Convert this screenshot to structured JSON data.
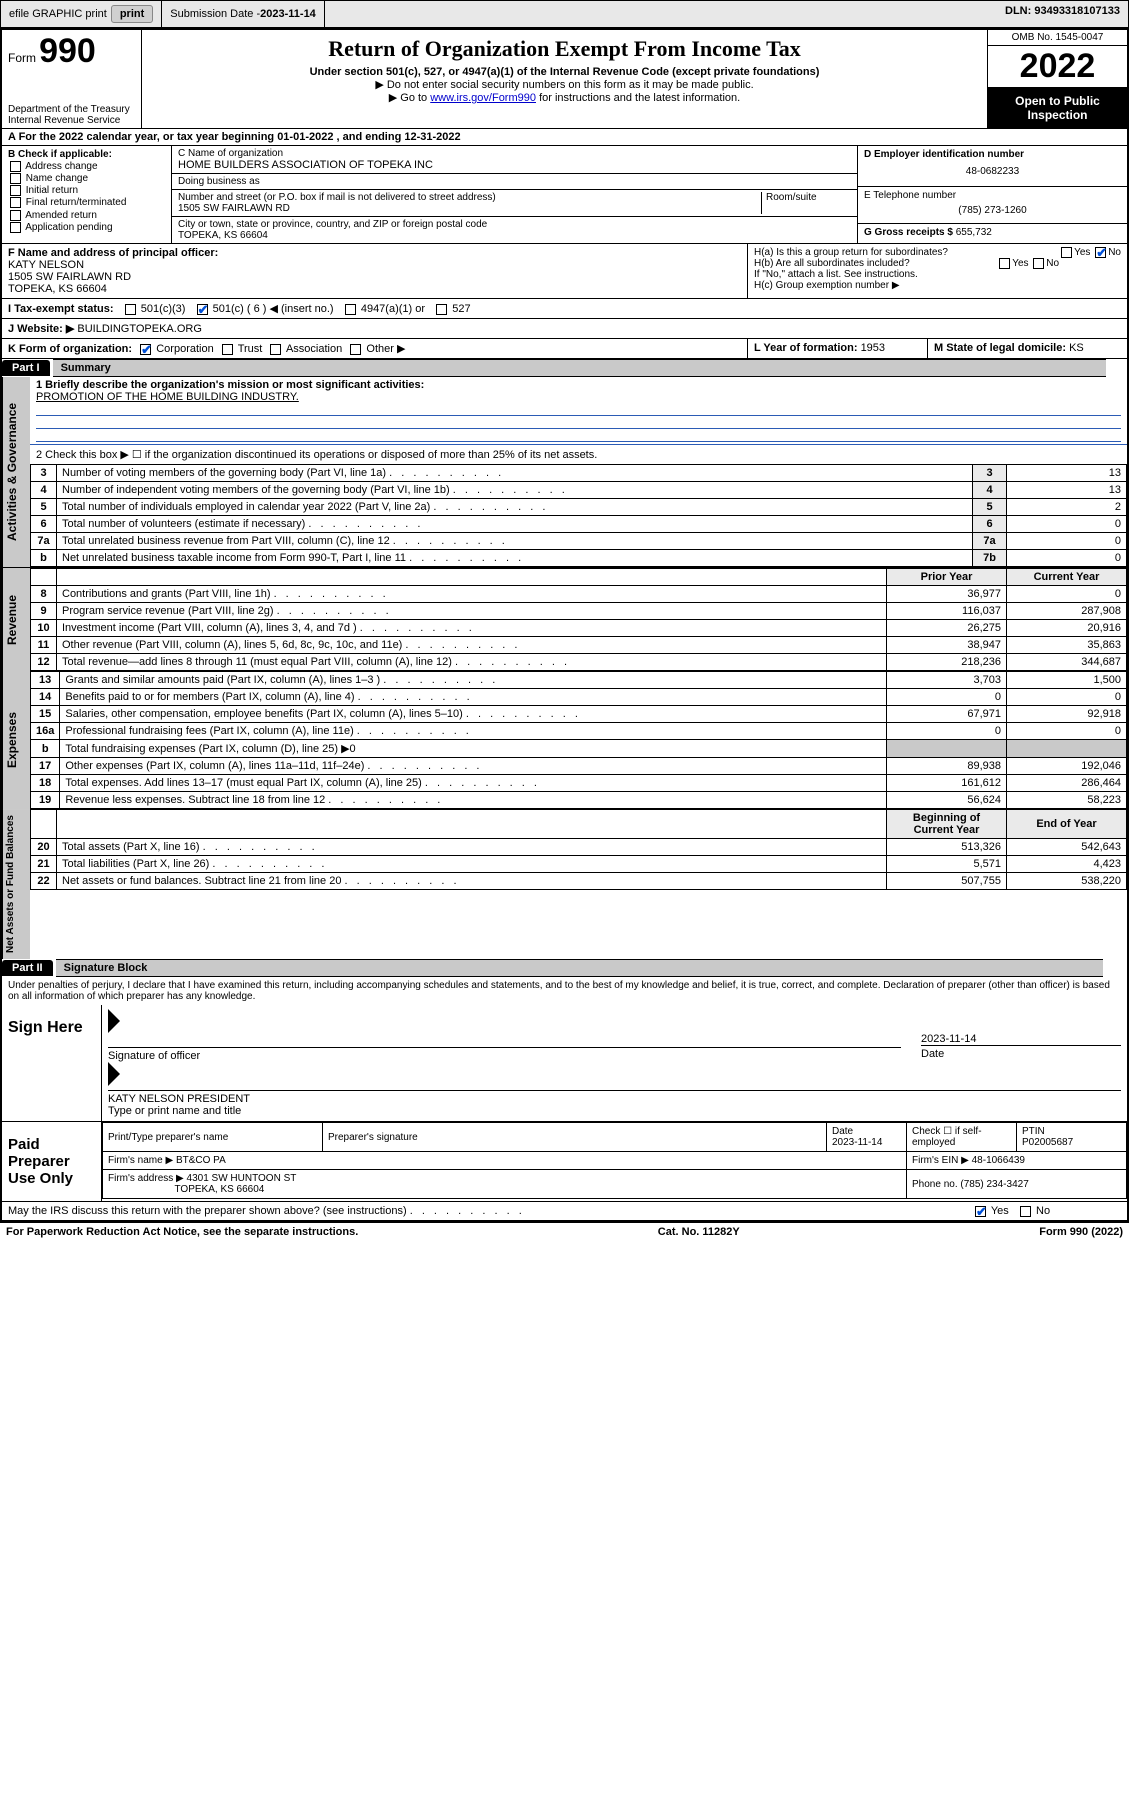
{
  "topbar": {
    "efile": "efile GRAPHIC print",
    "submission_label": "Submission Date - ",
    "submission_date": "2023-11-14",
    "dln_label": "DLN: ",
    "dln": "93493318107133"
  },
  "header": {
    "form_word": "Form",
    "form_num": "990",
    "title": "Return of Organization Exempt From Income Tax",
    "subtitle": "Under section 501(c), 527, or 4947(a)(1) of the Internal Revenue Code (except private foundations)",
    "note1": "▶ Do not enter social security numbers on this form as it may be made public.",
    "note2_pre": "▶ Go to ",
    "note2_link": "www.irs.gov/Form990",
    "note2_post": " for instructions and the latest information.",
    "omb": "OMB No. 1545-0047",
    "year": "2022",
    "open": "Open to Public Inspection",
    "dept": "Department of the Treasury",
    "irs": "Internal Revenue Service"
  },
  "lineA": "A For the 2022 calendar year, or tax year beginning 01-01-2022   , and ending 12-31-2022",
  "boxB": {
    "title": "B Check if applicable:",
    "items": [
      "Address change",
      "Name change",
      "Initial return",
      "Final return/terminated",
      "Amended return",
      "Application pending"
    ]
  },
  "boxC": {
    "label": "C Name of organization",
    "name": "HOME BUILDERS ASSOCIATION OF TOPEKA INC",
    "dba_label": "Doing business as",
    "dba": "",
    "street_label": "Number and street (or P.O. box if mail is not delivered to street address)",
    "room_label": "Room/suite",
    "street": "1505 SW FAIRLAWN RD",
    "city_label": "City or town, state or province, country, and ZIP or foreign postal code",
    "city": "TOPEKA, KS  66604"
  },
  "boxD": {
    "label": "D Employer identification number",
    "ein": "48-0682233"
  },
  "boxE": {
    "label": "E Telephone number",
    "phone": "(785) 273-1260"
  },
  "boxG": {
    "label": "G Gross receipts $ ",
    "val": "655,732"
  },
  "boxF": {
    "label": "F  Name and address of principal officer:",
    "name": "KATY NELSON",
    "street": "1505 SW FAIRLAWN RD",
    "city": "TOPEKA, KS  66604"
  },
  "boxH": {
    "a": "H(a)  Is this a group return for subordinates?",
    "b": "H(b)  Are all subordinates included?",
    "bnote": "If \"No,\" attach a list. See instructions.",
    "c": "H(c)  Group exemption number ▶",
    "yes": "Yes",
    "no": "No"
  },
  "lineI": {
    "label": "I   Tax-exempt status:",
    "o1": "501(c)(3)",
    "o2": "501(c) ( 6 ) ◀ (insert no.)",
    "o3": "4947(a)(1) or",
    "o4": "527"
  },
  "lineJ": {
    "label": "J   Website: ▶ ",
    "val": "BUILDINGTOPEKA.ORG"
  },
  "lineK": {
    "label": "K Form of organization:",
    "opts": [
      "Corporation",
      "Trust",
      "Association",
      "Other ▶"
    ],
    "l_label": "L Year of formation: ",
    "l_val": "1953",
    "m_label": "M State of legal domicile: ",
    "m_val": "KS"
  },
  "part1": {
    "hdr": "Part I",
    "title": "Summary",
    "q1": "1  Briefly describe the organization's mission or most significant activities:",
    "mission": "PROMOTION OF THE HOME BUILDING INDUSTRY.",
    "q2": "2   Check this box ▶ ☐  if the organization discontinued its operations or disposed of more than 25% of its net assets.",
    "prior_hdr": "Prior Year",
    "curr_hdr": "Current Year",
    "boy_hdr": "Beginning of Current Year",
    "eoy_hdr": "End of Year",
    "rows_gov": [
      {
        "n": "3",
        "d": "Number of voting members of the governing body (Part VI, line 1a)",
        "a": "3",
        "v": "13"
      },
      {
        "n": "4",
        "d": "Number of independent voting members of the governing body (Part VI, line 1b)",
        "a": "4",
        "v": "13"
      },
      {
        "n": "5",
        "d": "Total number of individuals employed in calendar year 2022 (Part V, line 2a)",
        "a": "5",
        "v": "2"
      },
      {
        "n": "6",
        "d": "Total number of volunteers (estimate if necessary)",
        "a": "6",
        "v": "0"
      },
      {
        "n": "7a",
        "d": "Total unrelated business revenue from Part VIII, column (C), line 12",
        "a": "7a",
        "v": "0"
      },
      {
        "n": "b",
        "d": "Net unrelated business taxable income from Form 990-T, Part I, line 11",
        "a": "7b",
        "v": "0"
      }
    ],
    "rows_rev": [
      {
        "n": "8",
        "d": "Contributions and grants (Part VIII, line 1h)",
        "p": "36,977",
        "c": "0"
      },
      {
        "n": "9",
        "d": "Program service revenue (Part VIII, line 2g)",
        "p": "116,037",
        "c": "287,908"
      },
      {
        "n": "10",
        "d": "Investment income (Part VIII, column (A), lines 3, 4, and 7d )",
        "p": "26,275",
        "c": "20,916"
      },
      {
        "n": "11",
        "d": "Other revenue (Part VIII, column (A), lines 5, 6d, 8c, 9c, 10c, and 11e)",
        "p": "38,947",
        "c": "35,863"
      },
      {
        "n": "12",
        "d": "Total revenue—add lines 8 through 11 (must equal Part VIII, column (A), line 12)",
        "p": "218,236",
        "c": "344,687"
      }
    ],
    "rows_exp": [
      {
        "n": "13",
        "d": "Grants and similar amounts paid (Part IX, column (A), lines 1–3 )",
        "p": "3,703",
        "c": "1,500"
      },
      {
        "n": "14",
        "d": "Benefits paid to or for members (Part IX, column (A), line 4)",
        "p": "0",
        "c": "0"
      },
      {
        "n": "15",
        "d": "Salaries, other compensation, employee benefits (Part IX, column (A), lines 5–10)",
        "p": "67,971",
        "c": "92,918"
      },
      {
        "n": "16a",
        "d": "Professional fundraising fees (Part IX, column (A), line 11e)",
        "p": "0",
        "c": "0"
      },
      {
        "n": "b",
        "d": "Total fundraising expenses (Part IX, column (D), line 25) ▶0",
        "p": "",
        "c": "",
        "shade": true
      },
      {
        "n": "17",
        "d": "Other expenses (Part IX, column (A), lines 11a–11d, 11f–24e)",
        "p": "89,938",
        "c": "192,046"
      },
      {
        "n": "18",
        "d": "Total expenses. Add lines 13–17 (must equal Part IX, column (A), line 25)",
        "p": "161,612",
        "c": "286,464"
      },
      {
        "n": "19",
        "d": "Revenue less expenses. Subtract line 18 from line 12",
        "p": "56,624",
        "c": "58,223"
      }
    ],
    "rows_net": [
      {
        "n": "20",
        "d": "Total assets (Part X, line 16)",
        "p": "513,326",
        "c": "542,643"
      },
      {
        "n": "21",
        "d": "Total liabilities (Part X, line 26)",
        "p": "5,571",
        "c": "4,423"
      },
      {
        "n": "22",
        "d": "Net assets or fund balances. Subtract line 21 from line 20",
        "p": "507,755",
        "c": "538,220"
      }
    ]
  },
  "part2": {
    "hdr": "Part II",
    "title": "Signature Block",
    "decl": "Under penalties of perjury, I declare that I have examined this return, including accompanying schedules and statements, and to the best of my knowledge and belief, it is true, correct, and complete. Declaration of preparer (other than officer) is based on all information of which preparer has any knowledge.",
    "sign_here": "Sign Here",
    "sig_officer": "Signature of officer",
    "sig_date": "2023-11-14",
    "date_lbl": "Date",
    "officer_name": "KATY NELSON  PRESIDENT",
    "type_name": "Type or print name and title",
    "paid": "Paid Preparer Use Only",
    "col_name": "Print/Type preparer's name",
    "col_sig": "Preparer's signature",
    "col_date": "Date",
    "date2": "2023-11-14",
    "check_lbl": "Check ☐ if self-employed",
    "ptin_lbl": "PTIN",
    "ptin": "P02005687",
    "firm_name_lbl": "Firm's name    ▶ ",
    "firm_name": "BT&CO PA",
    "firm_ein_lbl": "Firm's EIN ▶ ",
    "firm_ein": "48-1066439",
    "firm_addr_lbl": "Firm's address ▶ ",
    "firm_addr1": "4301 SW HUNTOON ST",
    "firm_addr2": "TOPEKA, KS  66604",
    "firm_phone_lbl": "Phone no. ",
    "firm_phone": "(785) 234-3427",
    "discuss": "May the IRS discuss this return with the preparer shown above? (see instructions)",
    "yes": "Yes",
    "no": "No"
  },
  "footer": {
    "left": "For Paperwork Reduction Act Notice, see the separate instructions.",
    "mid": "Cat. No. 11282Y",
    "right": "Form 990 (2022)"
  },
  "colors": {
    "link": "#0000cc",
    "check": "#0050d8",
    "rule": "#2b5bb5",
    "shade": "#c9c9c9",
    "ans_bg": "#eaeaea"
  }
}
